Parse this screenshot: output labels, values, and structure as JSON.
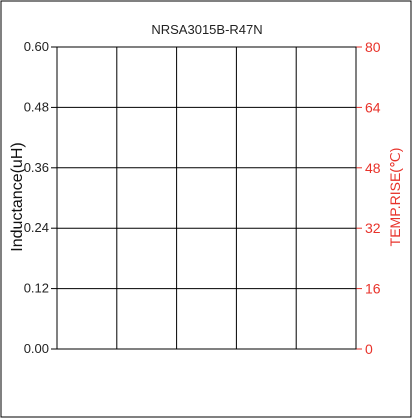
{
  "chart_data": {
    "type": "line",
    "title": "NRSA3015B-R47N",
    "xlabel": "",
    "ylabel": "Inductance(uH)",
    "y2label": "TEMP.RISE(℃)",
    "ylim": [
      0,
      0.6
    ],
    "y2lim": [
      0,
      80
    ],
    "yticks": [
      "0.00",
      "0.12",
      "0.24",
      "0.36",
      "0.48",
      "0.60"
    ],
    "y2ticks": [
      "0",
      "16",
      "32",
      "48",
      "64",
      "80"
    ],
    "x_divisions": 5,
    "grid": true,
    "series": []
  },
  "colors": {
    "frame": "#000000",
    "grid": "#000000",
    "right_axis": "#e8322a",
    "left_text": "#222222"
  }
}
